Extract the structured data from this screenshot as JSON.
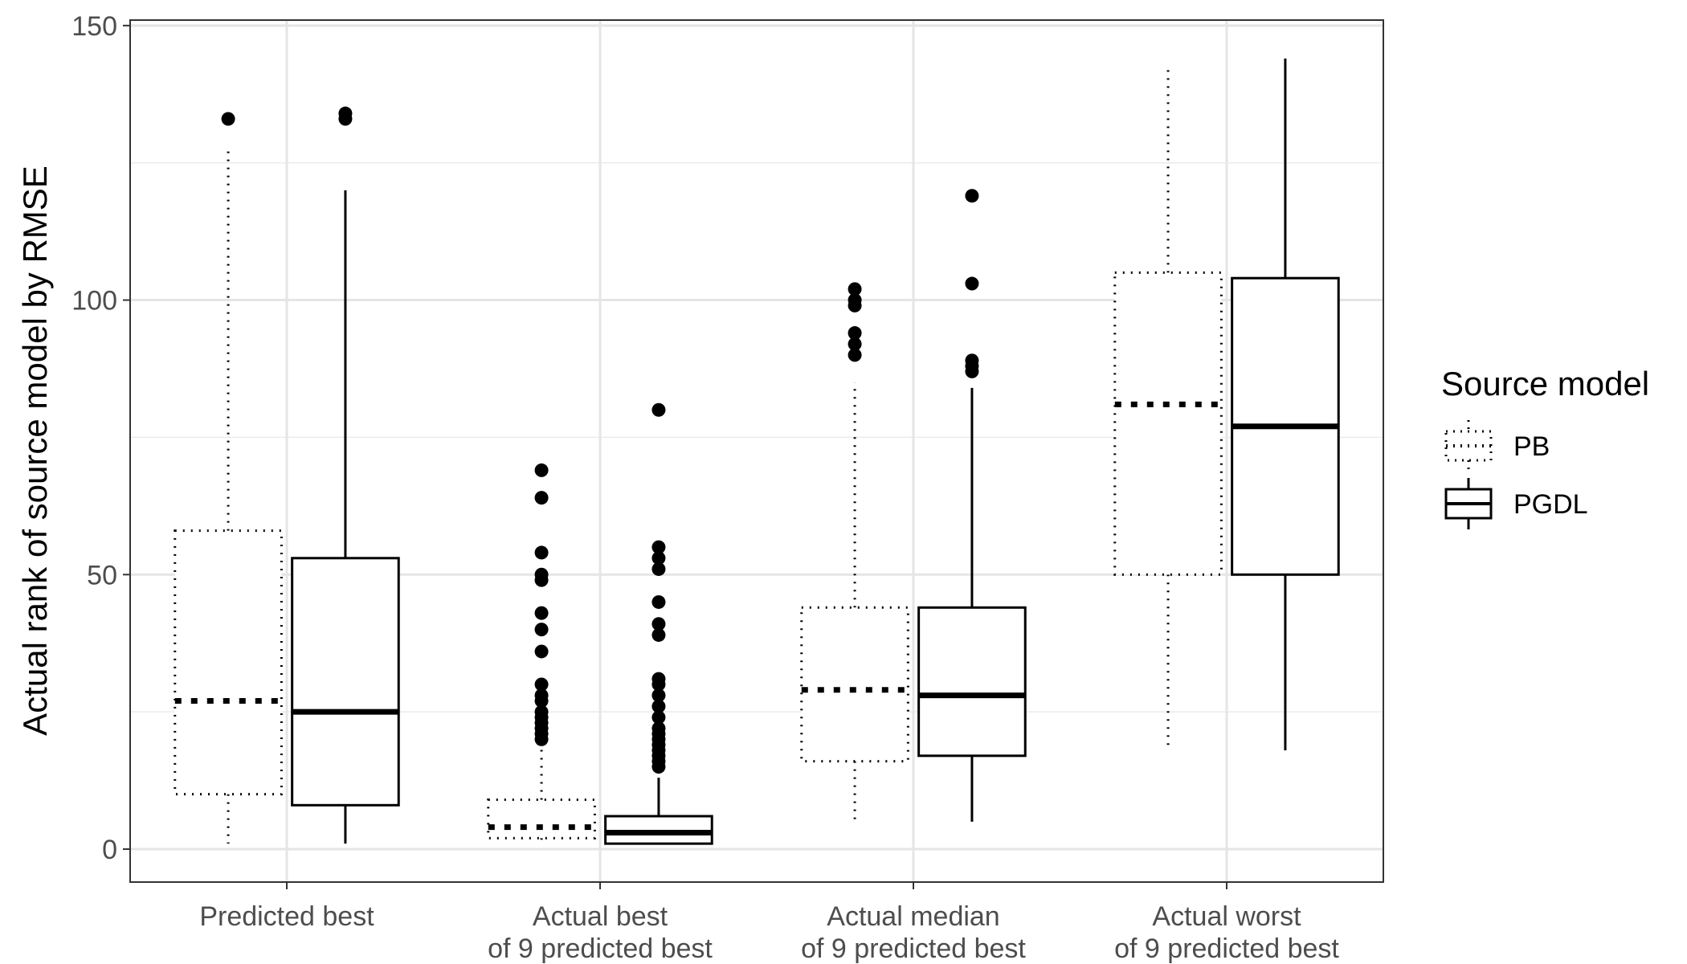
{
  "chart_data": {
    "type": "boxplot",
    "title": "",
    "xlabel": "",
    "ylabel": "Actual rank of source model by RMSE",
    "ylim": [
      -6,
      151
    ],
    "y_ticks": [
      0,
      50,
      100,
      150
    ],
    "grid": true,
    "legend_position": "right",
    "legend_title": "Source model",
    "categories": [
      [
        "Predicted best"
      ],
      [
        "Actual best",
        "of 9 predicted best"
      ],
      [
        "Actual median",
        "of 9 predicted best"
      ],
      [
        "Actual worst",
        "of 9 predicted best"
      ]
    ],
    "series": [
      {
        "name": "PB",
        "line_style": "dotted",
        "boxes": [
          {
            "whisker_low": 1,
            "q1": 10,
            "median": 27,
            "q3": 58,
            "whisker_high": 128,
            "outliers": [
              133
            ]
          },
          {
            "whisker_low": 1,
            "q1": 2,
            "median": 4,
            "q3": 9,
            "whisker_high": 19,
            "outliers": [
              20,
              21,
              22,
              23,
              24,
              25,
              27,
              28,
              30,
              36,
              40,
              43,
              49,
              50,
              54,
              64,
              69
            ]
          },
          {
            "whisker_low": 5,
            "q1": 16,
            "median": 29,
            "q3": 44,
            "whisker_high": 85,
            "outliers": [
              90,
              92,
              94,
              99,
              100,
              102
            ]
          },
          {
            "whisker_low": 18,
            "q1": 50,
            "median": 81,
            "q3": 105,
            "whisker_high": 142,
            "outliers": []
          }
        ]
      },
      {
        "name": "PGDL",
        "line_style": "solid",
        "boxes": [
          {
            "whisker_low": 1,
            "q1": 8,
            "median": 25,
            "q3": 53,
            "whisker_high": 120,
            "outliers": [
              133,
              134
            ]
          },
          {
            "whisker_low": 1,
            "q1": 1,
            "median": 3,
            "q3": 6,
            "whisker_high": 13,
            "outliers": [
              15,
              16,
              17,
              18,
              19,
              20,
              21,
              22,
              24,
              26,
              28,
              30,
              31,
              39,
              41,
              45,
              51,
              53,
              55,
              80
            ]
          },
          {
            "whisker_low": 5,
            "q1": 17,
            "median": 28,
            "q3": 44,
            "whisker_high": 84,
            "outliers": [
              87,
              88,
              89,
              103,
              119
            ]
          },
          {
            "whisker_low": 18,
            "q1": 50,
            "median": 77,
            "q3": 104,
            "whisker_high": 144,
            "outliers": []
          }
        ]
      }
    ]
  }
}
